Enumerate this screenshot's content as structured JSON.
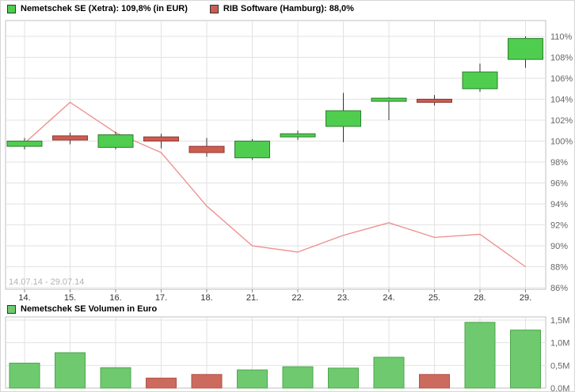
{
  "legend": {
    "price": {
      "items": [
        {
          "label": "Nemetschek SE (Xetra): 109,8% (in EUR)",
          "swatch": "up"
        },
        {
          "label": "RIB Software (Hamburg): 88,0%",
          "swatch": "down"
        }
      ]
    },
    "volume": {
      "label": "Nemetschek SE Volumen in Euro",
      "swatch": "volume_up"
    }
  },
  "watermark": "14.07.14 - 29.07.14",
  "colors": {
    "up": "#4fcd4f",
    "up_stroke": "#2f7d2f",
    "down": "#cd5c51",
    "down_stroke": "#8c3a32",
    "wick": "#333333",
    "line": "#ee8c8c",
    "volume_up": "#6fca6f",
    "volume_up_stroke": "#4da64d",
    "volume_down": "#cd6a5e",
    "volume_down_stroke": "#b05247",
    "grid": "#e2e2e2",
    "border": "#bfbfbf",
    "tick": "#888888",
    "axis_text": "#666666",
    "date_text": "#333333",
    "watermark": "#b3b3b3"
  },
  "chart_data": [
    {
      "type": "candlestick",
      "series_name": "Nemetschek SE (Xetra)",
      "categories": [
        "14.",
        "15.",
        "16.",
        "17.",
        "18.",
        "21.",
        "22.",
        "23.",
        "24.",
        "25.",
        "28.",
        "29."
      ],
      "ylim": [
        86,
        110
      ],
      "yticks": [
        86,
        88,
        90,
        92,
        94,
        96,
        98,
        100,
        102,
        104,
        106,
        108,
        110
      ],
      "ytick_suffix": "%",
      "grid": true,
      "legend_position": "top",
      "candles": [
        {
          "date": "14.",
          "open": 99.5,
          "high": 100.3,
          "low": 99.2,
          "close": 100.0
        },
        {
          "date": "15.",
          "open": 100.5,
          "high": 100.8,
          "low": 99.7,
          "close": 100.1
        },
        {
          "date": "16.",
          "open": 99.4,
          "high": 100.9,
          "low": 99.2,
          "close": 100.6
        },
        {
          "date": "17.",
          "open": 100.4,
          "high": 100.7,
          "low": 99.3,
          "close": 100.0
        },
        {
          "date": "18.",
          "open": 99.5,
          "high": 100.3,
          "low": 98.5,
          "close": 98.9
        },
        {
          "date": "21.",
          "open": 98.4,
          "high": 100.2,
          "low": 98.2,
          "close": 100.0
        },
        {
          "date": "22.",
          "open": 100.4,
          "high": 101.0,
          "low": 100.1,
          "close": 100.7
        },
        {
          "date": "23.",
          "open": 101.4,
          "high": 104.6,
          "low": 99.9,
          "close": 102.9
        },
        {
          "date": "24.",
          "open": 103.8,
          "high": 104.2,
          "low": 102.0,
          "close": 104.1
        },
        {
          "date": "25.",
          "open": 104.0,
          "high": 104.4,
          "low": 103.4,
          "close": 103.7
        },
        {
          "date": "28.",
          "open": 105.0,
          "high": 107.4,
          "low": 104.7,
          "close": 106.6
        },
        {
          "date": "29.",
          "open": 107.8,
          "high": 110.0,
          "low": 107.0,
          "close": 109.8
        }
      ],
      "line_series": {
        "name": "RIB Software (Hamburg)",
        "values": [
          99.8,
          103.7,
          100.8,
          98.9,
          93.8,
          90.0,
          89.4,
          91.0,
          92.2,
          90.8,
          91.1,
          88.0
        ]
      }
    },
    {
      "type": "bar",
      "series_name": "Nemetschek SE Volumen in Euro",
      "categories": [
        "14.",
        "15.",
        "16.",
        "17.",
        "18.",
        "21.",
        "22.",
        "23.",
        "24.",
        "25.",
        "28.",
        "29."
      ],
      "values": [
        0.55,
        0.78,
        0.45,
        0.22,
        0.3,
        0.4,
        0.47,
        0.44,
        0.68,
        0.3,
        1.45,
        1.28
      ],
      "unit": "M EUR",
      "directions": [
        "up",
        "up",
        "up",
        "down",
        "down",
        "up",
        "up",
        "up",
        "up",
        "down",
        "up",
        "up"
      ],
      "ylim": [
        0,
        1.5
      ],
      "yticks": [
        {
          "value": 0,
          "label": "0,0M"
        },
        {
          "value": 0.5,
          "label": "0,5M"
        },
        {
          "value": 1.0,
          "label": "1,0M"
        },
        {
          "value": 1.5,
          "label": "1,5M"
        }
      ]
    }
  ]
}
